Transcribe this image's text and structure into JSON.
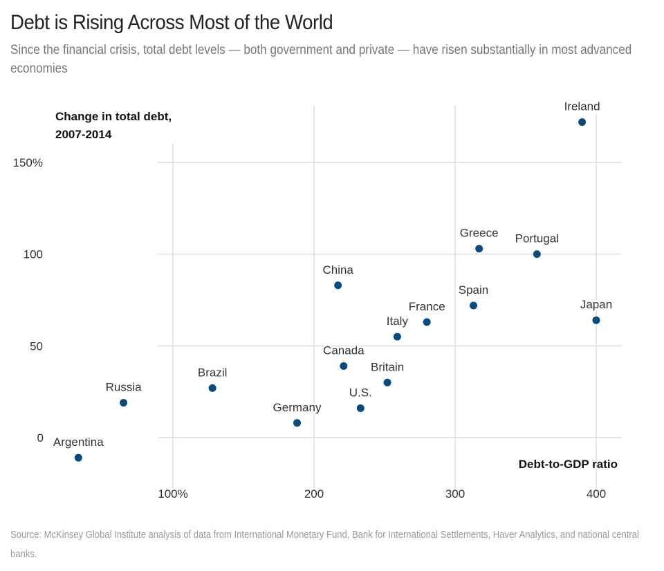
{
  "header": {
    "title": "Debt is Rising Across Most of the World",
    "subtitle": "Since the financial crisis, total debt levels — both government and private — have risen substantially in most advanced economies"
  },
  "footer": {
    "source": "Source: McKinsey Global Institute analysis of data from International Monetary Fund, Bank for International Settlements, Haver Analytics, and national central banks."
  },
  "chart_data": {
    "type": "scatter",
    "title": "Debt is Rising Across Most of the World",
    "xlabel": "Debt-to-GDP ratio",
    "ylabel_lines": [
      "Change in total debt,",
      "2007-2014"
    ],
    "ylabel": "Change in total debt, 2007-2014",
    "xlim": [
      15,
      420
    ],
    "ylim": [
      -20,
      175
    ],
    "x_ticks": [
      100,
      200,
      300,
      400
    ],
    "x_tick_labels": [
      "100%",
      "200",
      "300",
      "400"
    ],
    "y_ticks": [
      0,
      50,
      100,
      150
    ],
    "y_tick_labels": [
      "0",
      "50",
      "100",
      "150%"
    ],
    "grid": true,
    "legend": "none",
    "point_color": "#0a4a7d",
    "points": [
      {
        "label": "Ireland",
        "x": 390,
        "y": 172
      },
      {
        "label": "Greece",
        "x": 317,
        "y": 103
      },
      {
        "label": "Portugal",
        "x": 358,
        "y": 100
      },
      {
        "label": "China",
        "x": 217,
        "y": 83
      },
      {
        "label": "Spain",
        "x": 313,
        "y": 72
      },
      {
        "label": "France",
        "x": 280,
        "y": 63
      },
      {
        "label": "Japan",
        "x": 400,
        "y": 64
      },
      {
        "label": "Italy",
        "x": 259,
        "y": 55
      },
      {
        "label": "Canada",
        "x": 221,
        "y": 39
      },
      {
        "label": "Britain",
        "x": 252,
        "y": 30
      },
      {
        "label": "U.S.",
        "x": 233,
        "y": 16
      },
      {
        "label": "Germany",
        "x": 188,
        "y": 8
      },
      {
        "label": "Brazil",
        "x": 128,
        "y": 27
      },
      {
        "label": "Russia",
        "x": 65,
        "y": 19
      },
      {
        "label": "Argentina",
        "x": 33,
        "y": -11
      }
    ]
  }
}
